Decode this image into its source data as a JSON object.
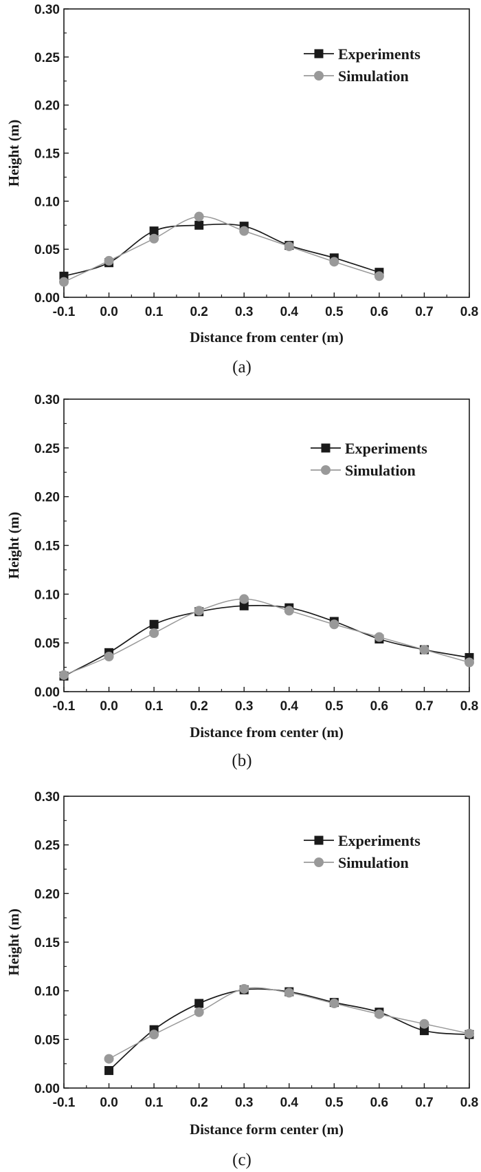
{
  "chart_data": [
    {
      "type": "line",
      "panel_label": "(a)",
      "xlabel": "Distance from center (m)",
      "ylabel": "Height (m)",
      "xlim": [
        -0.1,
        0.8
      ],
      "ylim": [
        0.0,
        0.3
      ],
      "xticks": [
        "-0.1",
        "0.0",
        "0.1",
        "0.2",
        "0.3",
        "0.4",
        "0.5",
        "0.6",
        "0.7",
        "0.8"
      ],
      "yticks": [
        "0.00",
        "0.05",
        "0.10",
        "0.15",
        "0.20",
        "0.25",
        "0.30"
      ],
      "legend_position": "top-right",
      "series": [
        {
          "name": "Experiments",
          "color": "#1a1a1a",
          "marker": "square",
          "x": [
            -0.1,
            0.0,
            0.1,
            0.2,
            0.3,
            0.4,
            0.5,
            0.6
          ],
          "values": [
            0.022,
            0.036,
            0.069,
            0.075,
            0.074,
            0.054,
            0.041,
            0.026
          ]
        },
        {
          "name": "Simulation",
          "color": "#999999",
          "marker": "circle",
          "x": [
            -0.1,
            0.0,
            0.1,
            0.2,
            0.3,
            0.4,
            0.5,
            0.6
          ],
          "values": [
            0.016,
            0.038,
            0.061,
            0.084,
            0.069,
            0.053,
            0.037,
            0.022
          ]
        }
      ]
    },
    {
      "type": "line",
      "panel_label": "(b)",
      "xlabel": "Distance from center (m)",
      "ylabel": "Height (m)",
      "xlim": [
        -0.1,
        0.8
      ],
      "ylim": [
        0.0,
        0.3
      ],
      "xticks": [
        "-0.1",
        "0.0",
        "0.1",
        "0.2",
        "0.3",
        "0.4",
        "0.5",
        "0.6",
        "0.7",
        "0.8"
      ],
      "yticks": [
        "0.00",
        "0.05",
        "0.10",
        "0.15",
        "0.20",
        "0.25",
        "0.30"
      ],
      "legend_position": "top-right",
      "series": [
        {
          "name": "Experiments",
          "color": "#1a1a1a",
          "marker": "square",
          "x": [
            -0.1,
            0.0,
            0.1,
            0.2,
            0.3,
            0.4,
            0.5,
            0.6,
            0.7,
            0.8
          ],
          "values": [
            0.016,
            0.04,
            0.069,
            0.082,
            0.088,
            0.086,
            0.072,
            0.054,
            0.043,
            0.035
          ]
        },
        {
          "name": "Simulation",
          "color": "#999999",
          "marker": "circle",
          "x": [
            -0.1,
            0.0,
            0.1,
            0.2,
            0.3,
            0.4,
            0.5,
            0.6,
            0.7,
            0.8
          ],
          "values": [
            0.017,
            0.036,
            0.06,
            0.083,
            0.095,
            0.083,
            0.069,
            0.056,
            0.043,
            0.03
          ]
        }
      ]
    },
    {
      "type": "line",
      "panel_label": "(c)",
      "xlabel": "Distance form center (m)",
      "ylabel": "Height (m)",
      "xlim": [
        -0.1,
        0.8
      ],
      "ylim": [
        0.0,
        0.3
      ],
      "xticks": [
        "-0.1",
        "0.0",
        "0.1",
        "0.2",
        "0.3",
        "0.4",
        "0.5",
        "0.6",
        "0.7",
        "0.8"
      ],
      "yticks": [
        "0.00",
        "0.05",
        "0.10",
        "0.15",
        "0.20",
        "0.25",
        "0.30"
      ],
      "legend_position": "top-right",
      "series": [
        {
          "name": "Experiments",
          "color": "#1a1a1a",
          "marker": "square",
          "x": [
            0.0,
            0.1,
            0.2,
            0.3,
            0.4,
            0.5,
            0.6,
            0.7,
            0.8
          ],
          "values": [
            0.018,
            0.06,
            0.087,
            0.101,
            0.099,
            0.088,
            0.078,
            0.059,
            0.055
          ]
        },
        {
          "name": "Simulation",
          "color": "#999999",
          "marker": "circle",
          "x": [
            0.0,
            0.1,
            0.2,
            0.3,
            0.4,
            0.5,
            0.6,
            0.7,
            0.8
          ],
          "values": [
            0.03,
            0.055,
            0.078,
            0.102,
            0.098,
            0.087,
            0.076,
            0.066,
            0.056
          ]
        }
      ]
    }
  ]
}
